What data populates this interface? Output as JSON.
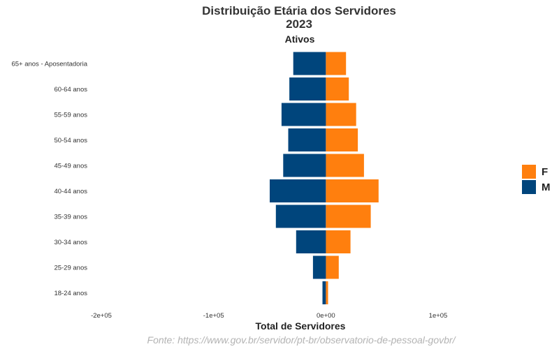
{
  "chart_data": {
    "type": "bar",
    "orientation": "horizontal",
    "title": "Distribuição Etária dos Servidores",
    "subtitle": "2023",
    "panel_label": "Ativos",
    "xlabel": "Total de Servidores",
    "caption": "Fonte: https://www.gov.br/servidor/pt-br/observatorio-de-pessoal-govbr/",
    "xlim": [
      -200000,
      100000
    ],
    "x_ticks": [
      -200000,
      -100000,
      0,
      100000
    ],
    "x_tick_labels": [
      "-2e+05",
      "-1e+05",
      "0e+00",
      "1e+05"
    ],
    "grid": false,
    "legend_position": "right",
    "categories": [
      "65+ anos - Aposentadoria",
      "60-64 anos",
      "55-59 anos",
      "50-54 anos",
      "45-49 anos",
      "40-44 anos",
      "35-39 anos",
      "30-34 anos",
      "25-29 anos",
      "18-24 anos"
    ],
    "series": [
      {
        "name": "F",
        "color": "#FF7F0E",
        "values": [
          18000,
          20500,
          27000,
          28500,
          34000,
          47000,
          40000,
          22000,
          11500,
          2000
        ]
      },
      {
        "name": "M",
        "color": "#00457C",
        "values": [
          -29000,
          -32500,
          -39500,
          -33500,
          -38000,
          -50000,
          -44500,
          -26500,
          -11500,
          -3000
        ]
      }
    ]
  }
}
